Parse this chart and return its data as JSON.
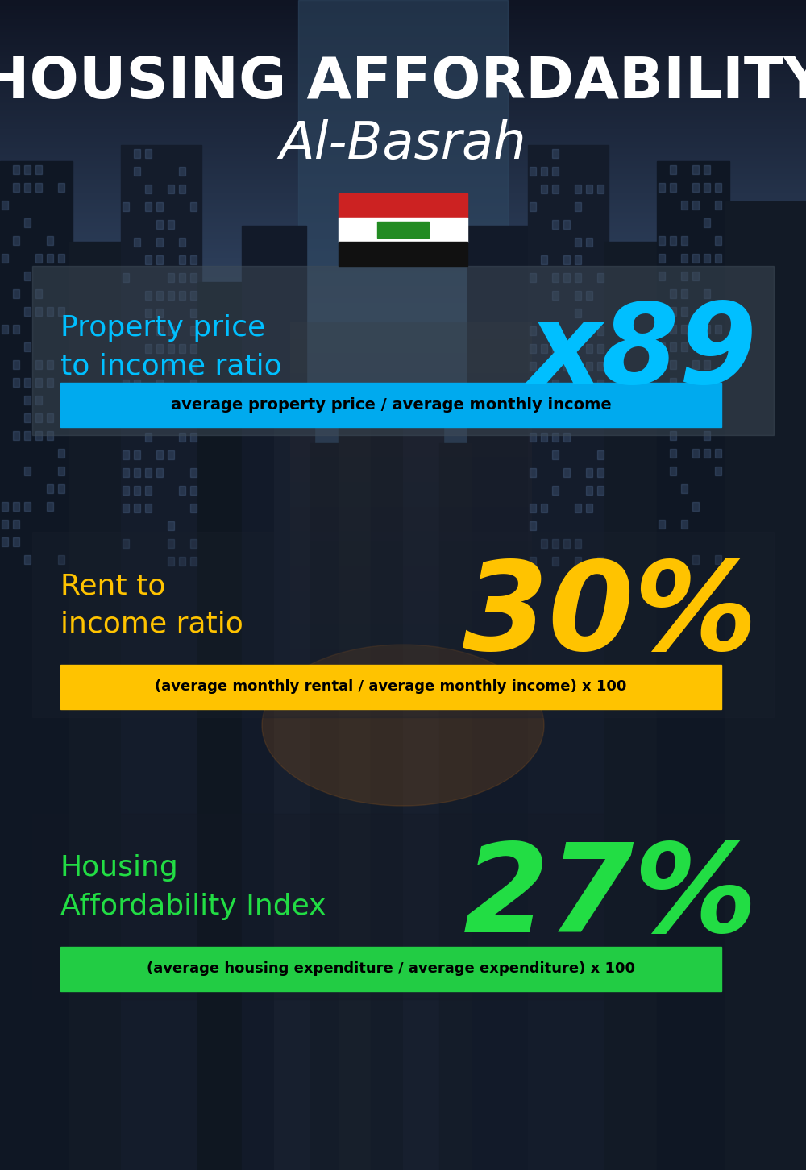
{
  "title_line1": "HOUSING AFFORDABILITY",
  "title_line2": "Al-Basrah",
  "bg_color": "#0d1117",
  "title_color": "#ffffff",
  "subtitle_color": "#ffffff",
  "section1_label": "Property price\nto income ratio",
  "section1_value": "x89",
  "section1_label_color": "#00bfff",
  "section1_value_color": "#00bfff",
  "section1_formula": "average property price / average monthly income",
  "section1_formula_bg": "#00aaee",
  "section1_formula_color": "#000000",
  "section2_label": "Rent to\nincome ratio",
  "section2_value": "30%",
  "section2_label_color": "#ffc300",
  "section2_value_color": "#ffc300",
  "section2_formula": "(average monthly rental / average monthly income) x 100",
  "section2_formula_bg": "#ffc300",
  "section2_formula_color": "#000000",
  "section3_label": "Housing\nAffordability Index",
  "section3_value": "27%",
  "section3_label_color": "#22dd44",
  "section3_value_color": "#22dd44",
  "section3_formula": "(average housing expenditure / average expenditure) x 100",
  "section3_formula_bg": "#22cc44",
  "section3_formula_color": "#000000",
  "flag_red": "#cc2222",
  "flag_white": "#ffffff",
  "flag_black": "#111111",
  "flag_green": "#228B22"
}
